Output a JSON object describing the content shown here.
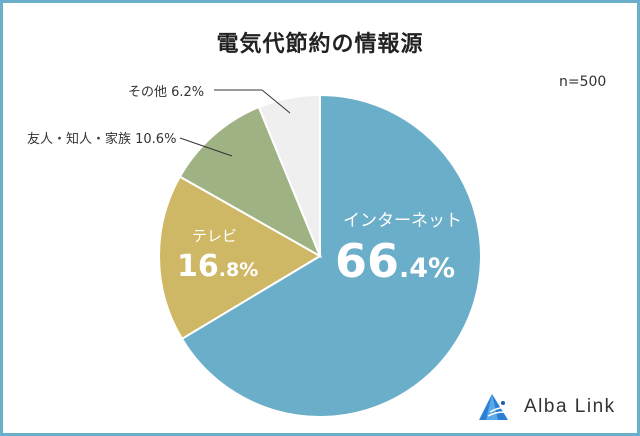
{
  "title": "電気代節約の情報源",
  "sample_size": "n=500",
  "logo": {
    "text": "Alba Link",
    "icon": "alba-link-triangle-logo-icon"
  },
  "colors": {
    "border": "#6aaec9",
    "internet": "#6aaec9",
    "tv": "#cfb865",
    "friends": "#9eb284",
    "other": "#efeff0"
  },
  "labels": {
    "other": "その他 6.2%",
    "friends": "友人・知人・家族 10.6%",
    "tv_name": "テレビ",
    "tv_int": "16",
    "tv_dec": ".8%",
    "internet_name": "インターネット",
    "internet_int": "66",
    "internet_dec": ".4%"
  },
  "chart_data": {
    "type": "pie",
    "title": "電気代節約の情報源",
    "annotation": "n=500",
    "categories": [
      "インターネット",
      "テレビ",
      "友人・知人・家族",
      "その他"
    ],
    "values": [
      66.4,
      16.8,
      10.6,
      6.2
    ],
    "unit": "%",
    "colors": [
      "#6aaec9",
      "#cfb865",
      "#9eb284",
      "#efeff0"
    ],
    "start_angle": "12 o'clock",
    "direction": "clockwise",
    "legend": "none (direct labels)"
  }
}
